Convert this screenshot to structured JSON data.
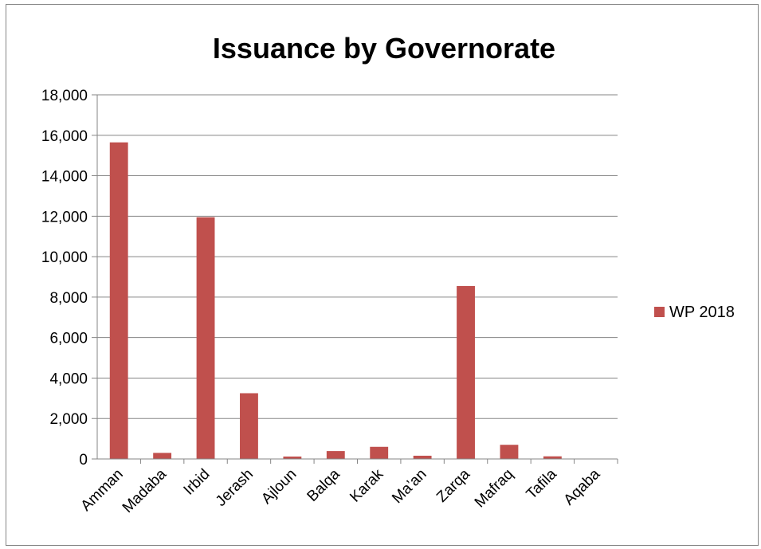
{
  "chart_data": {
    "type": "bar",
    "title": "Issuance by Governorate",
    "xlabel": "",
    "ylabel": "",
    "categories": [
      "Amman",
      "Madaba",
      "Irbid",
      "Jerash",
      "Ajloun",
      "Balqa",
      "Karak",
      "Ma’an",
      "Zarqa",
      "Mafraq",
      "Tafila",
      "Aqaba"
    ],
    "series": [
      {
        "name": "WP 2018",
        "color": "#C0504D",
        "values": [
          15650,
          300,
          11950,
          3250,
          120,
          390,
          600,
          160,
          8550,
          700,
          130,
          0
        ]
      }
    ],
    "ylim": [
      0,
      18000
    ],
    "yticks": [
      "0",
      "2,000",
      "4,000",
      "6,000",
      "8,000",
      "10,000",
      "12,000",
      "14,000",
      "16,000",
      "18,000"
    ],
    "grid": true,
    "legend_position": "right"
  }
}
